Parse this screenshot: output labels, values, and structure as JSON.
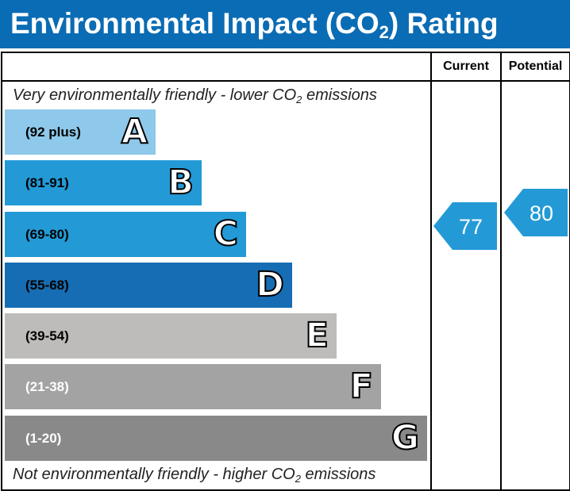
{
  "header": {
    "title_prefix": "Environmental Impact (CO",
    "title_sub": "2",
    "title_suffix": ") Rating"
  },
  "columns": {
    "current": "Current",
    "potential": "Potential"
  },
  "top_note": {
    "prefix": "Very environmentally friendly - lower CO",
    "sub": "2",
    "suffix": " emissions"
  },
  "bottom_note": {
    "prefix": "Not environmentally friendly - higher CO",
    "sub": "2",
    "suffix": " emissions"
  },
  "bands": [
    {
      "range": "(92 plus)",
      "letter": "A",
      "color": "#8ec8ea",
      "text_color": "#000000"
    },
    {
      "range": "(81-91)",
      "letter": "B",
      "color": "#239ad6",
      "text_color": "#000000"
    },
    {
      "range": "(69-80)",
      "letter": "C",
      "color": "#239ad6",
      "text_color": "#000000"
    },
    {
      "range": "(55-68)",
      "letter": "D",
      "color": "#166db3",
      "text_color": "#000000"
    },
    {
      "range": "(39-54)",
      "letter": "E",
      "color": "#bdbcba",
      "text_color": "#000000"
    },
    {
      "range": "(21-38)",
      "letter": "F",
      "color": "#a3a3a3",
      "text_color": "#ffffff"
    },
    {
      "range": "(1-20)",
      "letter": "G",
      "color": "#898989",
      "text_color": "#ffffff"
    }
  ],
  "current": {
    "value": "77",
    "color": "#239ad6"
  },
  "potential": {
    "value": "80",
    "color": "#239ad6"
  }
}
